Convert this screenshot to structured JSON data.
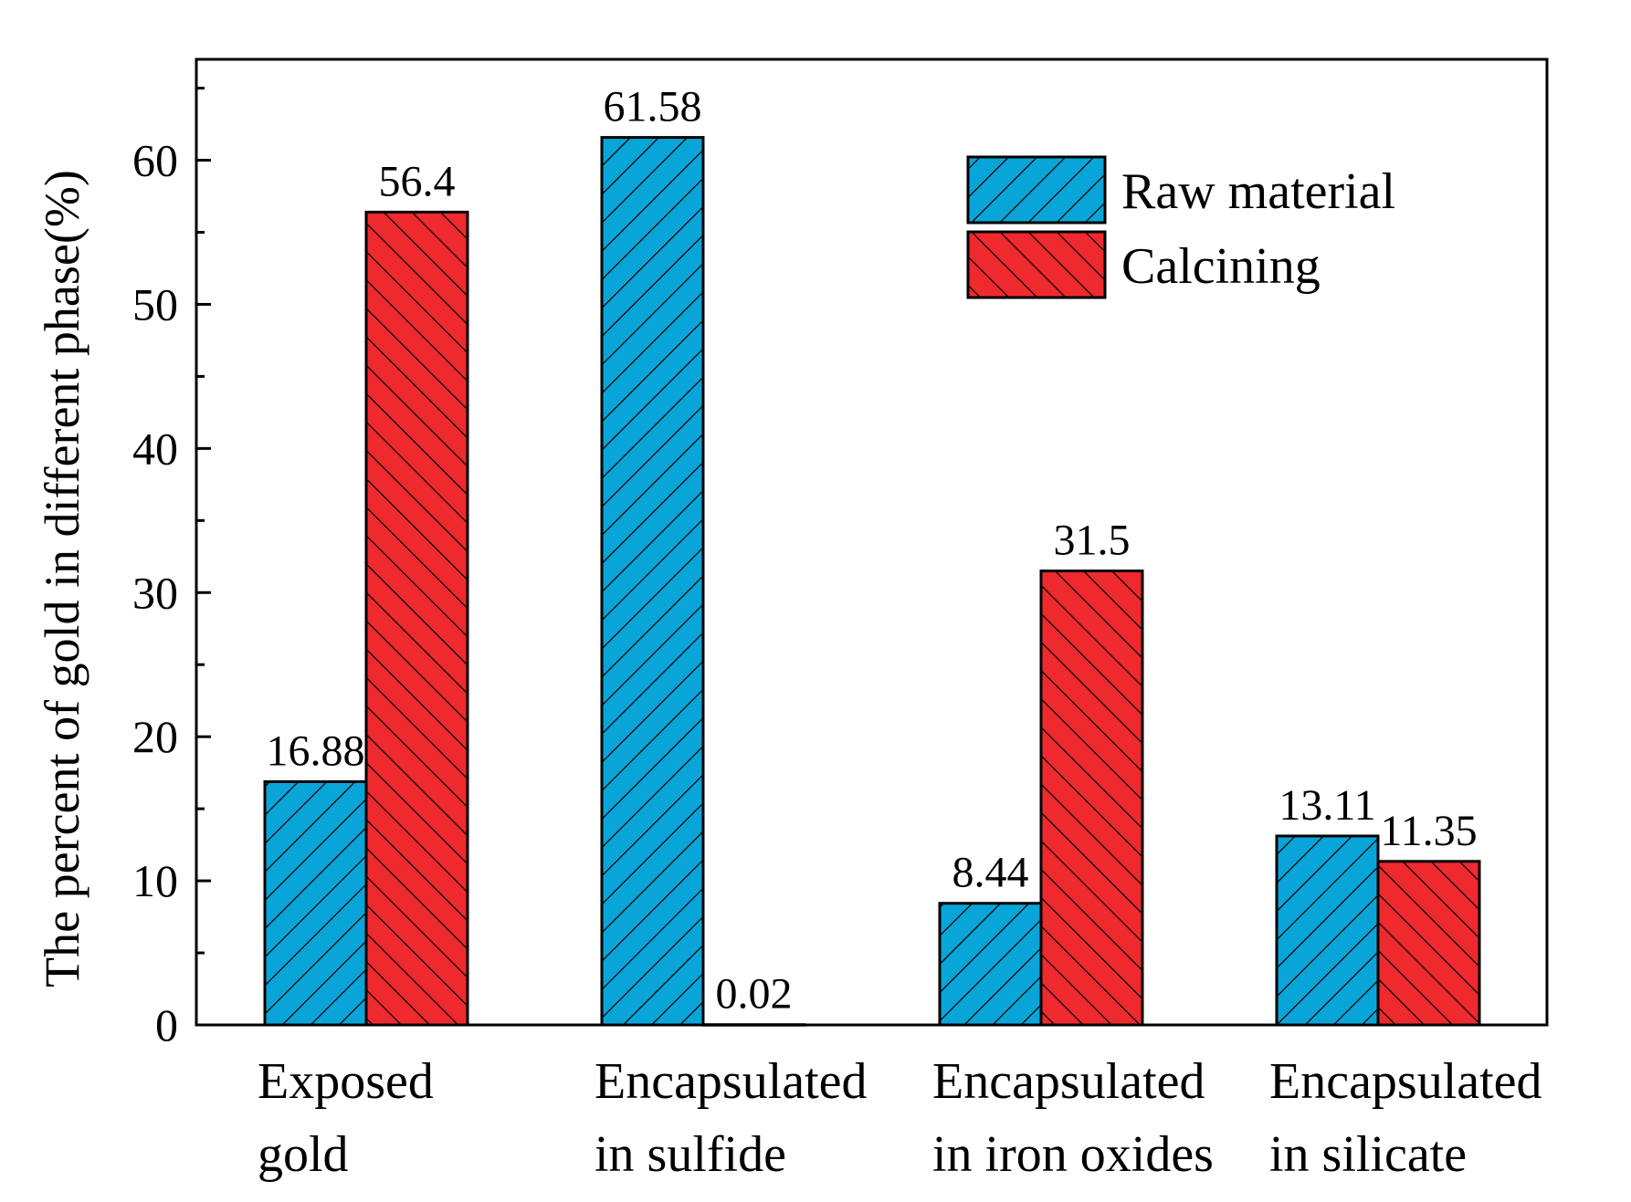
{
  "chart_data": {
    "type": "bar",
    "title": "",
    "xlabel": "",
    "ylabel": "The percent of gold in different phase(%)",
    "ylim": [
      0,
      67
    ],
    "yticks": [
      0,
      10,
      20,
      30,
      40,
      50,
      60
    ],
    "categories": [
      [
        "Exposed",
        "gold"
      ],
      [
        "Encapsulated",
        "in sulfide"
      ],
      [
        "Encapsulated",
        "in iron oxides"
      ],
      [
        "Encapsulated",
        "in silicate"
      ]
    ],
    "series": [
      {
        "name": "Raw material",
        "values": [
          16.88,
          61.58,
          8.44,
          13.11
        ],
        "labels": [
          "16.88",
          "61.58",
          "8.44",
          "13.11"
        ],
        "color": "#0aa5d8",
        "hatch": "forward"
      },
      {
        "name": "Calcining",
        "values": [
          56.4,
          0.02,
          31.5,
          11.35
        ],
        "labels": [
          "56.4",
          "0.02",
          "31.5",
          "11.35"
        ],
        "color": "#ee2a2e",
        "hatch": "backward"
      }
    ],
    "legend": {
      "position": "top-right",
      "entries": [
        "Raw material",
        "Calcining"
      ]
    },
    "grid": false
  }
}
